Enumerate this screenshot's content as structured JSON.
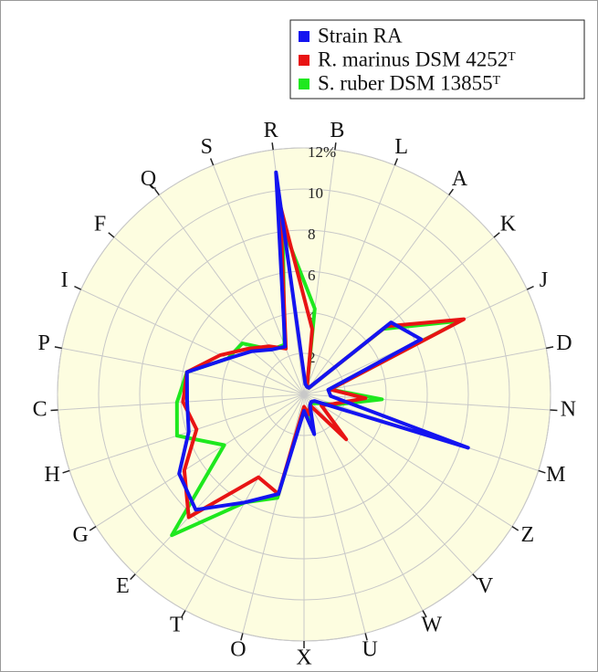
{
  "chart_data": {
    "type": "radar",
    "categories": [
      "R",
      "B",
      "L",
      "A",
      "K",
      "J",
      "D",
      "N",
      "M",
      "Z",
      "V",
      "W",
      "U",
      "X",
      "O",
      "T",
      "E",
      "G",
      "H",
      "C",
      "P",
      "I",
      "F",
      "Q",
      "S"
    ],
    "series": [
      {
        "name": "Strain RA",
        "color": "#1414f0",
        "values": [
          10.9,
          0.5,
          0.4,
          0.4,
          5.5,
          6.3,
          1.2,
          1.3,
          8.4,
          0.6,
          0.5,
          0.6,
          2.0,
          0.8,
          5.0,
          6.0,
          7.7,
          7.2,
          5.9,
          5.7,
          5.8,
          4.1,
          3.3,
          2.7,
          2.5
        ]
      },
      {
        "name": "R. marinus DSM 4252ᵀ",
        "color": "#e81414",
        "values": [
          9.3,
          3.2,
          0.4,
          0.4,
          5.2,
          8.6,
          1.3,
          3.0,
          1.5,
          1.0,
          3.0,
          0.6,
          1.0,
          0.6,
          5.0,
          4.6,
          8.2,
          6.9,
          5.5,
          5.9,
          5.8,
          4.5,
          3.5,
          2.9,
          2.4
        ]
      },
      {
        "name": "S. ruber DSM 13855ᵀ",
        "color": "#1ee81e",
        "values": [
          8.2,
          4.2,
          0.4,
          0.4,
          5.0,
          8.4,
          1.3,
          3.8,
          1.6,
          0.8,
          0.6,
          0.6,
          1.2,
          0.7,
          5.2,
          6.0,
          9.4,
          4.6,
          6.5,
          6.2,
          5.8,
          4.1,
          3.9,
          2.7,
          2.6
        ]
      }
    ],
    "ylim": [
      0,
      12
    ],
    "yticks": [
      2,
      4,
      6,
      8,
      10,
      {
        "value": 12,
        "label": "12%"
      }
    ],
    "grid": true,
    "legend": "top-right"
  }
}
